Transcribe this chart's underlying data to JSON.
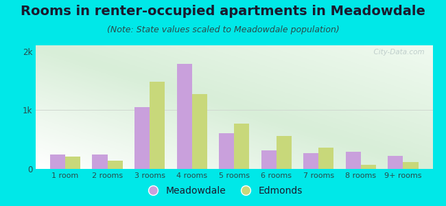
{
  "title": "Rooms in renter-occupied apartments in Meadowdale",
  "subtitle": "(Note: State values scaled to Meadowdale population)",
  "categories": [
    "1 room",
    "2 rooms",
    "3 rooms",
    "4 rooms",
    "5 rooms",
    "6 rooms",
    "7 rooms",
    "8 rooms",
    "9+ rooms"
  ],
  "meadowdale": [
    250,
    240,
    1050,
    1780,
    610,
    310,
    270,
    290,
    220
  ],
  "edmonds": [
    210,
    145,
    1480,
    1270,
    770,
    560,
    360,
    75,
    115
  ],
  "meadowdale_color": "#c9a0dc",
  "edmonds_color": "#c8d87a",
  "background_outer": "#00e8e8",
  "ylim": [
    0,
    2100
  ],
  "yticks": [
    0,
    1000,
    2000
  ],
  "ytick_labels": [
    "0",
    "1k",
    "2k"
  ],
  "bar_width": 0.36,
  "title_fontsize": 14,
  "subtitle_fontsize": 9,
  "legend_labels": [
    "Meadowdale",
    "Edmonds"
  ],
  "watermark": "  City-Data.com",
  "title_color": "#1a1a2e",
  "subtitle_color": "#2a4a4a",
  "tick_color": "#2a4a4a"
}
